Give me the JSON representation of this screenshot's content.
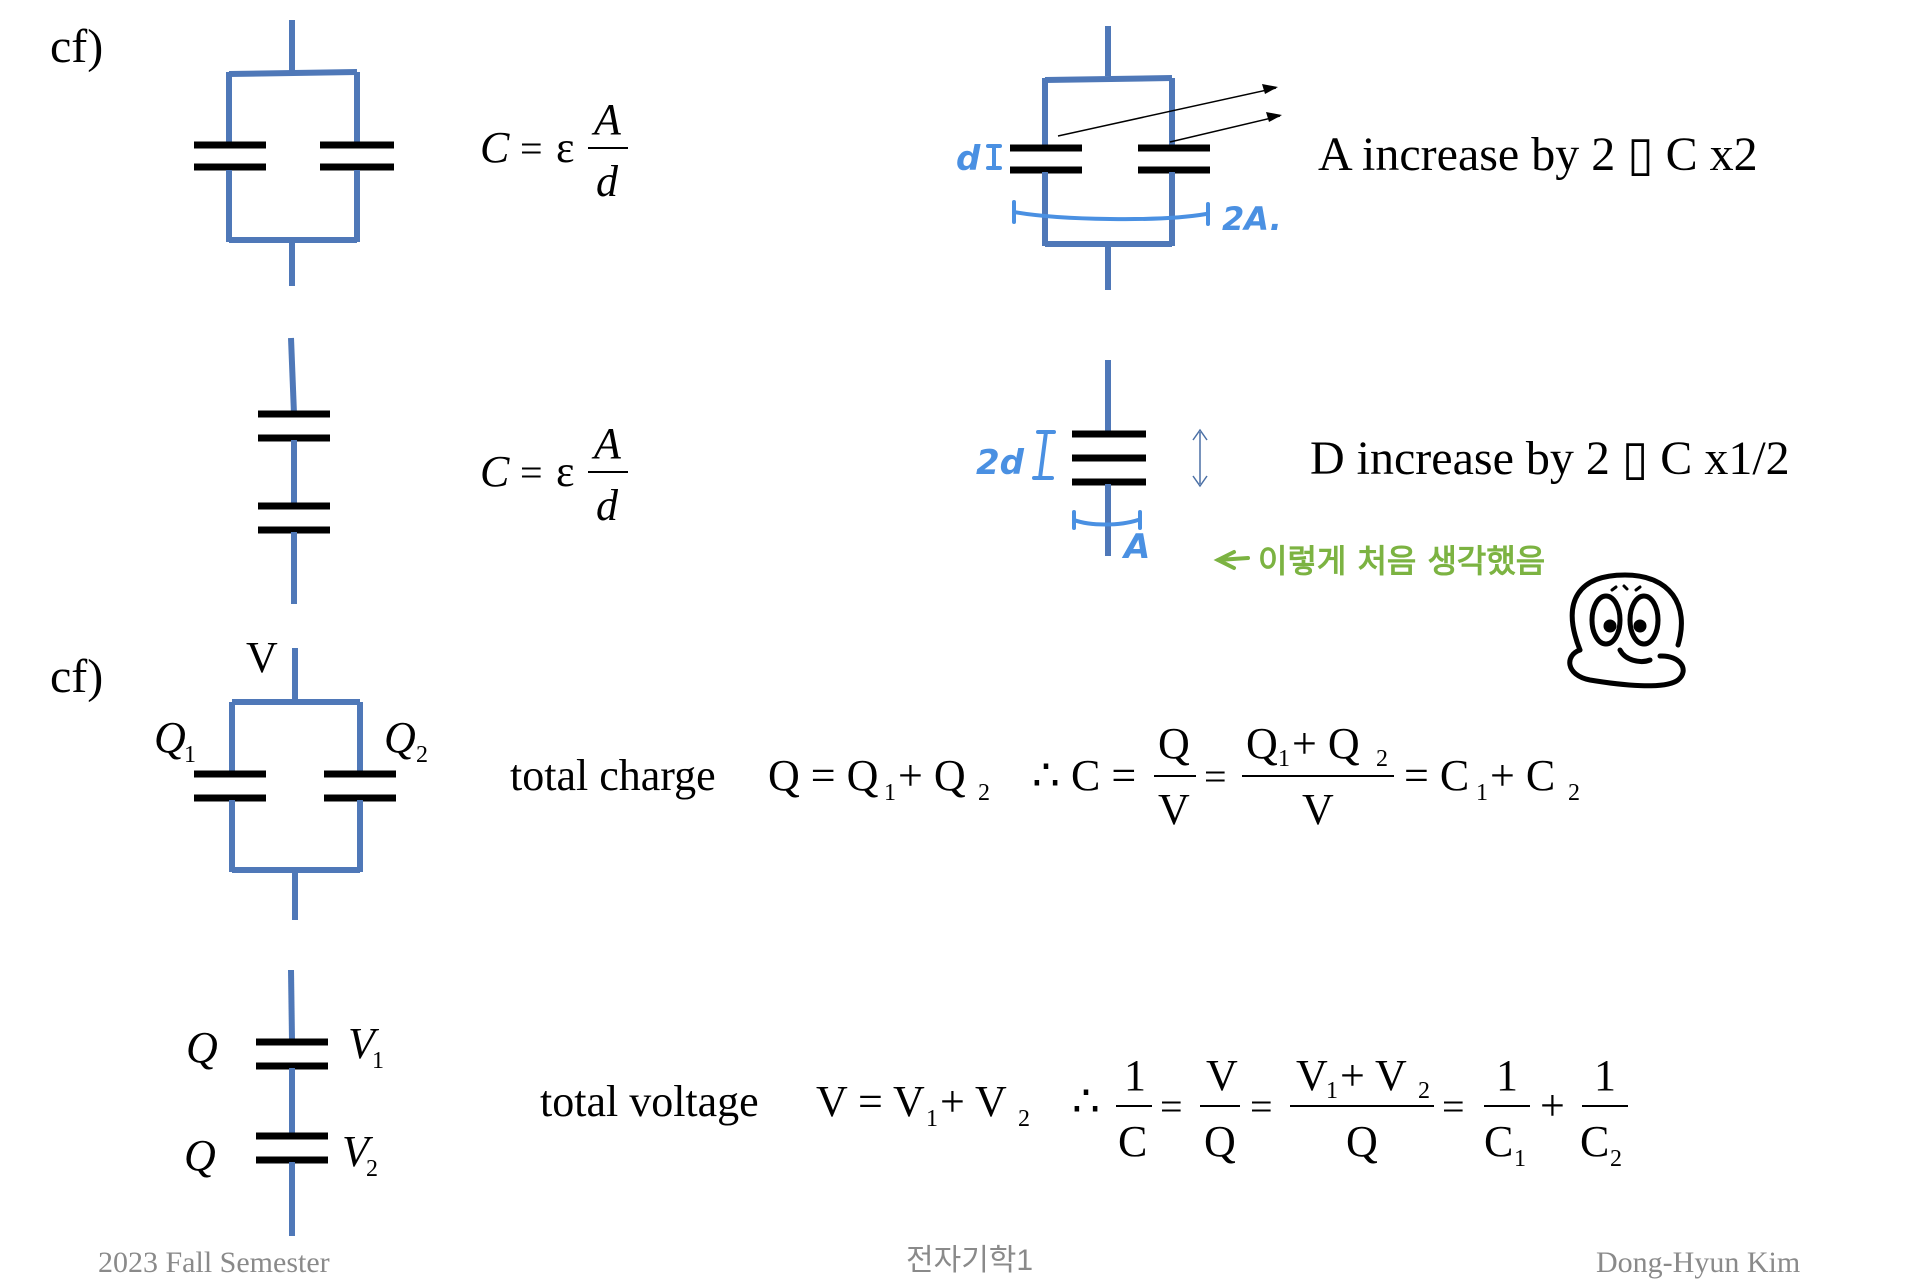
{
  "labels": {
    "cf_top": "cf)",
    "cf_bottom": "cf)"
  },
  "formulas": {
    "C": "C",
    "eq": "=",
    "eps": "ε",
    "A": "A",
    "d": "d"
  },
  "notes": {
    "area_increase": "A increase by 2 ▯ C x2",
    "distance_increase": "D increase by 2 ▯ C x1/2",
    "hand_d": "d",
    "hand_2A": "2A.",
    "hand_2d": "2d",
    "hand_A": "A",
    "green_note": "이렇게 처음 생각했음"
  },
  "parallel": {
    "V": "V",
    "Q": "Q",
    "sub1": "1",
    "sub2": "2",
    "total_label": "total charge",
    "total_eq": "Q = Q",
    "plus_Q": " + Q",
    "therefore": "∴ C =",
    "Q_num": "Q",
    "V_den": "V",
    "Q1pQ2_a": "Q",
    "Q1pQ2_b": " + Q",
    "result": "= C",
    "result_plus": " + C"
  },
  "series": {
    "Q": "Q",
    "V": "V",
    "sub1": "1",
    "sub2": "2",
    "total_label": "total voltage",
    "total_eq": "V = V",
    "plus_V": " + V",
    "therefore": "∴",
    "one": "1",
    "C": "C",
    "V_num": "V",
    "Q_den": "Q",
    "V1pV2_a": "V",
    "V1pV2_b": " + V",
    "C1": "C",
    "C2": "C",
    "plus": "+"
  },
  "footer": {
    "left": "2023 Fall Semester",
    "center": "전자기학1",
    "right": "Dong-Hyun Kim"
  }
}
